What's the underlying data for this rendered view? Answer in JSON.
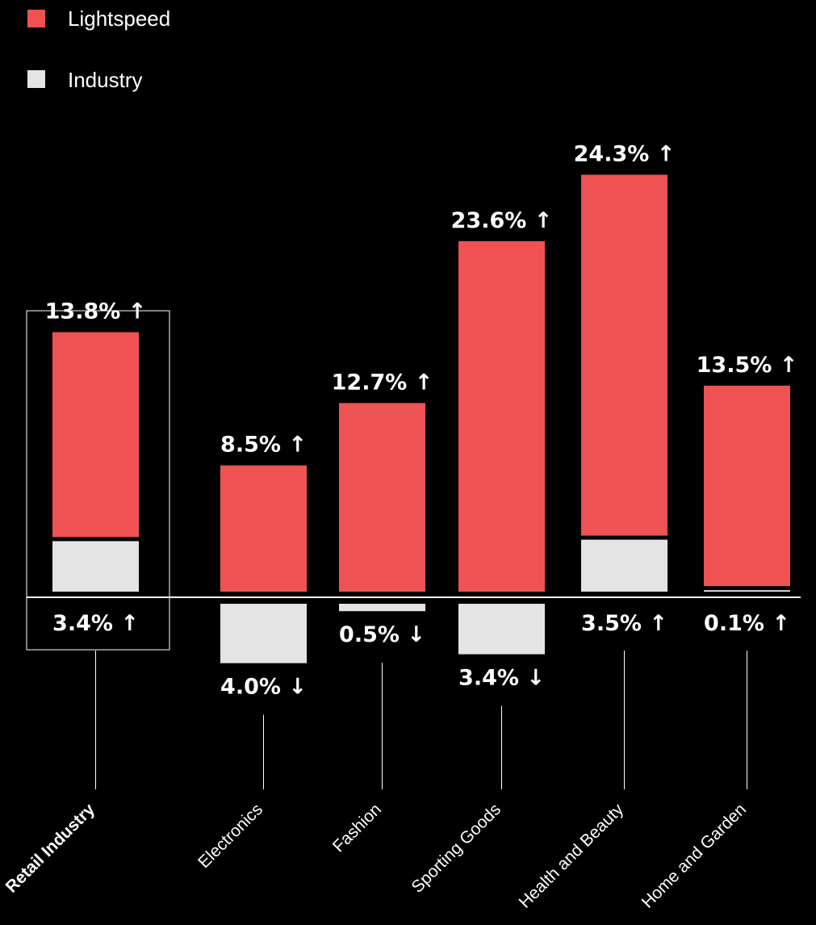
{
  "legend": [
    {
      "label": "Lightspeed",
      "color": "#ee5253"
    },
    {
      "label": "Industry",
      "color": "#e4e4e4"
    }
  ],
  "colors": {
    "background": "#000000",
    "lightspeed": "#ee5253",
    "industry": "#e4e4e4",
    "text": "#ffffff"
  },
  "chart_data": {
    "type": "bar",
    "categories": [
      "Retail Industry",
      "Electronics",
      "Fashion",
      "Sporting Goods",
      "Health and Beauty",
      "Home and Garden"
    ],
    "highlighted_category": "Retail Industry",
    "series": [
      {
        "name": "Lightspeed",
        "values": [
          13.8,
          8.5,
          12.7,
          23.6,
          24.3,
          13.5
        ],
        "labels": [
          "13.8% ↑",
          "8.5% ↑",
          "12.7% ↑",
          "23.6% ↑",
          "24.3% ↑",
          "13.5% ↑"
        ]
      },
      {
        "name": "Industry",
        "values": [
          3.4,
          -4.0,
          -0.5,
          -3.4,
          3.5,
          0.1
        ],
        "labels": [
          "3.4% ↑",
          "4.0% ↓",
          "0.5% ↓",
          "3.4% ↓",
          "3.5% ↑",
          "0.1% ↑"
        ]
      }
    ],
    "legend_position": "top-left",
    "grid": false
  }
}
